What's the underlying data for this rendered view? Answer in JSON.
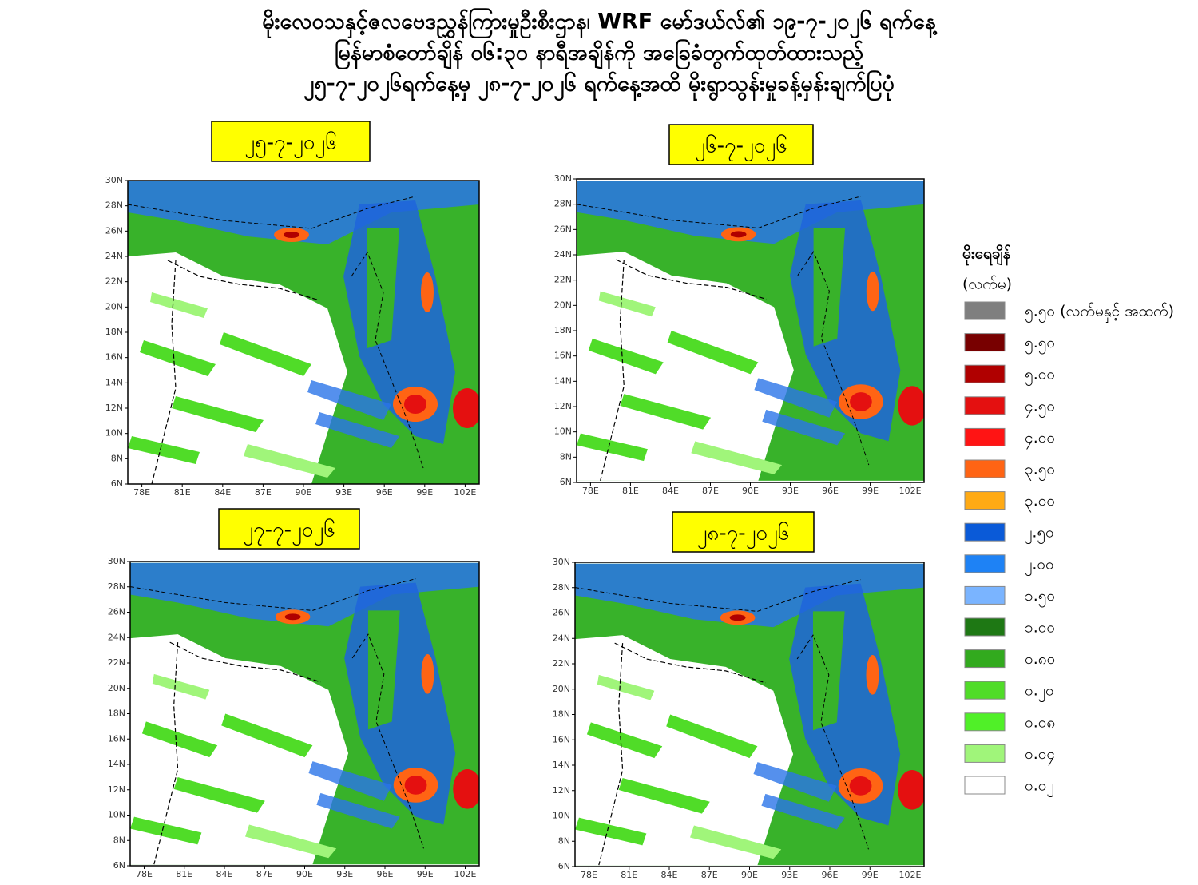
{
  "title": {
    "lines": [
      "မိုးလေဝသနှင့်ဇလဗေဒညွှန်ကြားမှုဦးစီးဌာန၊ WRF မော်ဒယ်လ်၏ ၁၉-၇-၂၀၂၆ ရက်နေ့",
      "မြန်မာစံတော်ချိန် ၀၆:၃၀ နာရီအချိန်ကို အခြေခံတွက်ထုတ်ထားသည့်",
      "၂၅-၇-၂၀၂၆ရက်နေ့မှ ၂၈-၇-၂၀၂၆ ရက်နေ့အထိ မိုးရွာသွန်းမှုခန့်မှန်းချက်ပြပုံ"
    ]
  },
  "panels": [
    {
      "date": "၂၅-၇-၂၀၂၆"
    },
    {
      "date": "၂၆-၇-၂၀၂၆"
    },
    {
      "date": "၂၇-၇-၂၀၂၆"
    },
    {
      "date": "၂၈-၇-၂၀၂၆"
    }
  ],
  "axes": {
    "lat_labels": [
      "30N",
      "28N",
      "26N",
      "24N",
      "22N",
      "20N",
      "18N",
      "16N",
      "14N",
      "12N",
      "10N",
      "8N",
      "6N"
    ],
    "lon_labels": [
      "78E",
      "81E",
      "84E",
      "87E",
      "90E",
      "93E",
      "96E",
      "99E",
      "102E"
    ]
  },
  "legend": {
    "title": "မိုးရေချိန်",
    "unit": "(လက်မ)",
    "items": [
      {
        "label": "၅.၅၀ (လက်မနှင့် အထက်)",
        "color": "#7f7f7f"
      },
      {
        "label": "၅.၅၀",
        "color": "#780000"
      },
      {
        "label": "၅.၀၀",
        "color": "#b00000"
      },
      {
        "label": "၄.၅၀",
        "color": "#e41010"
      },
      {
        "label": "၄.၀၀",
        "color": "#ff1414"
      },
      {
        "label": "၃.၅၀",
        "color": "#ff6414"
      },
      {
        "label": "၃.၀၀",
        "color": "#ffaa14"
      },
      {
        "label": "၂.၅၀",
        "color": "#0a5ad8"
      },
      {
        "label": "၂.၀၀",
        "color": "#1e82f5"
      },
      {
        "label": "၁.၅၀",
        "color": "#7ab4ff"
      },
      {
        "label": "၁.၀၀",
        "color": "#1e7814"
      },
      {
        "label": "၀.၈၀",
        "color": "#32aa1e"
      },
      {
        "label": "၀.၂၀",
        "color": "#50dc28"
      },
      {
        "label": "၀.၀၈",
        "color": "#50f028"
      },
      {
        "label": "၀.၀၄",
        "color": "#a0f57a"
      },
      {
        "label": "၀.၀၂",
        "color": "#ffffff"
      }
    ]
  }
}
